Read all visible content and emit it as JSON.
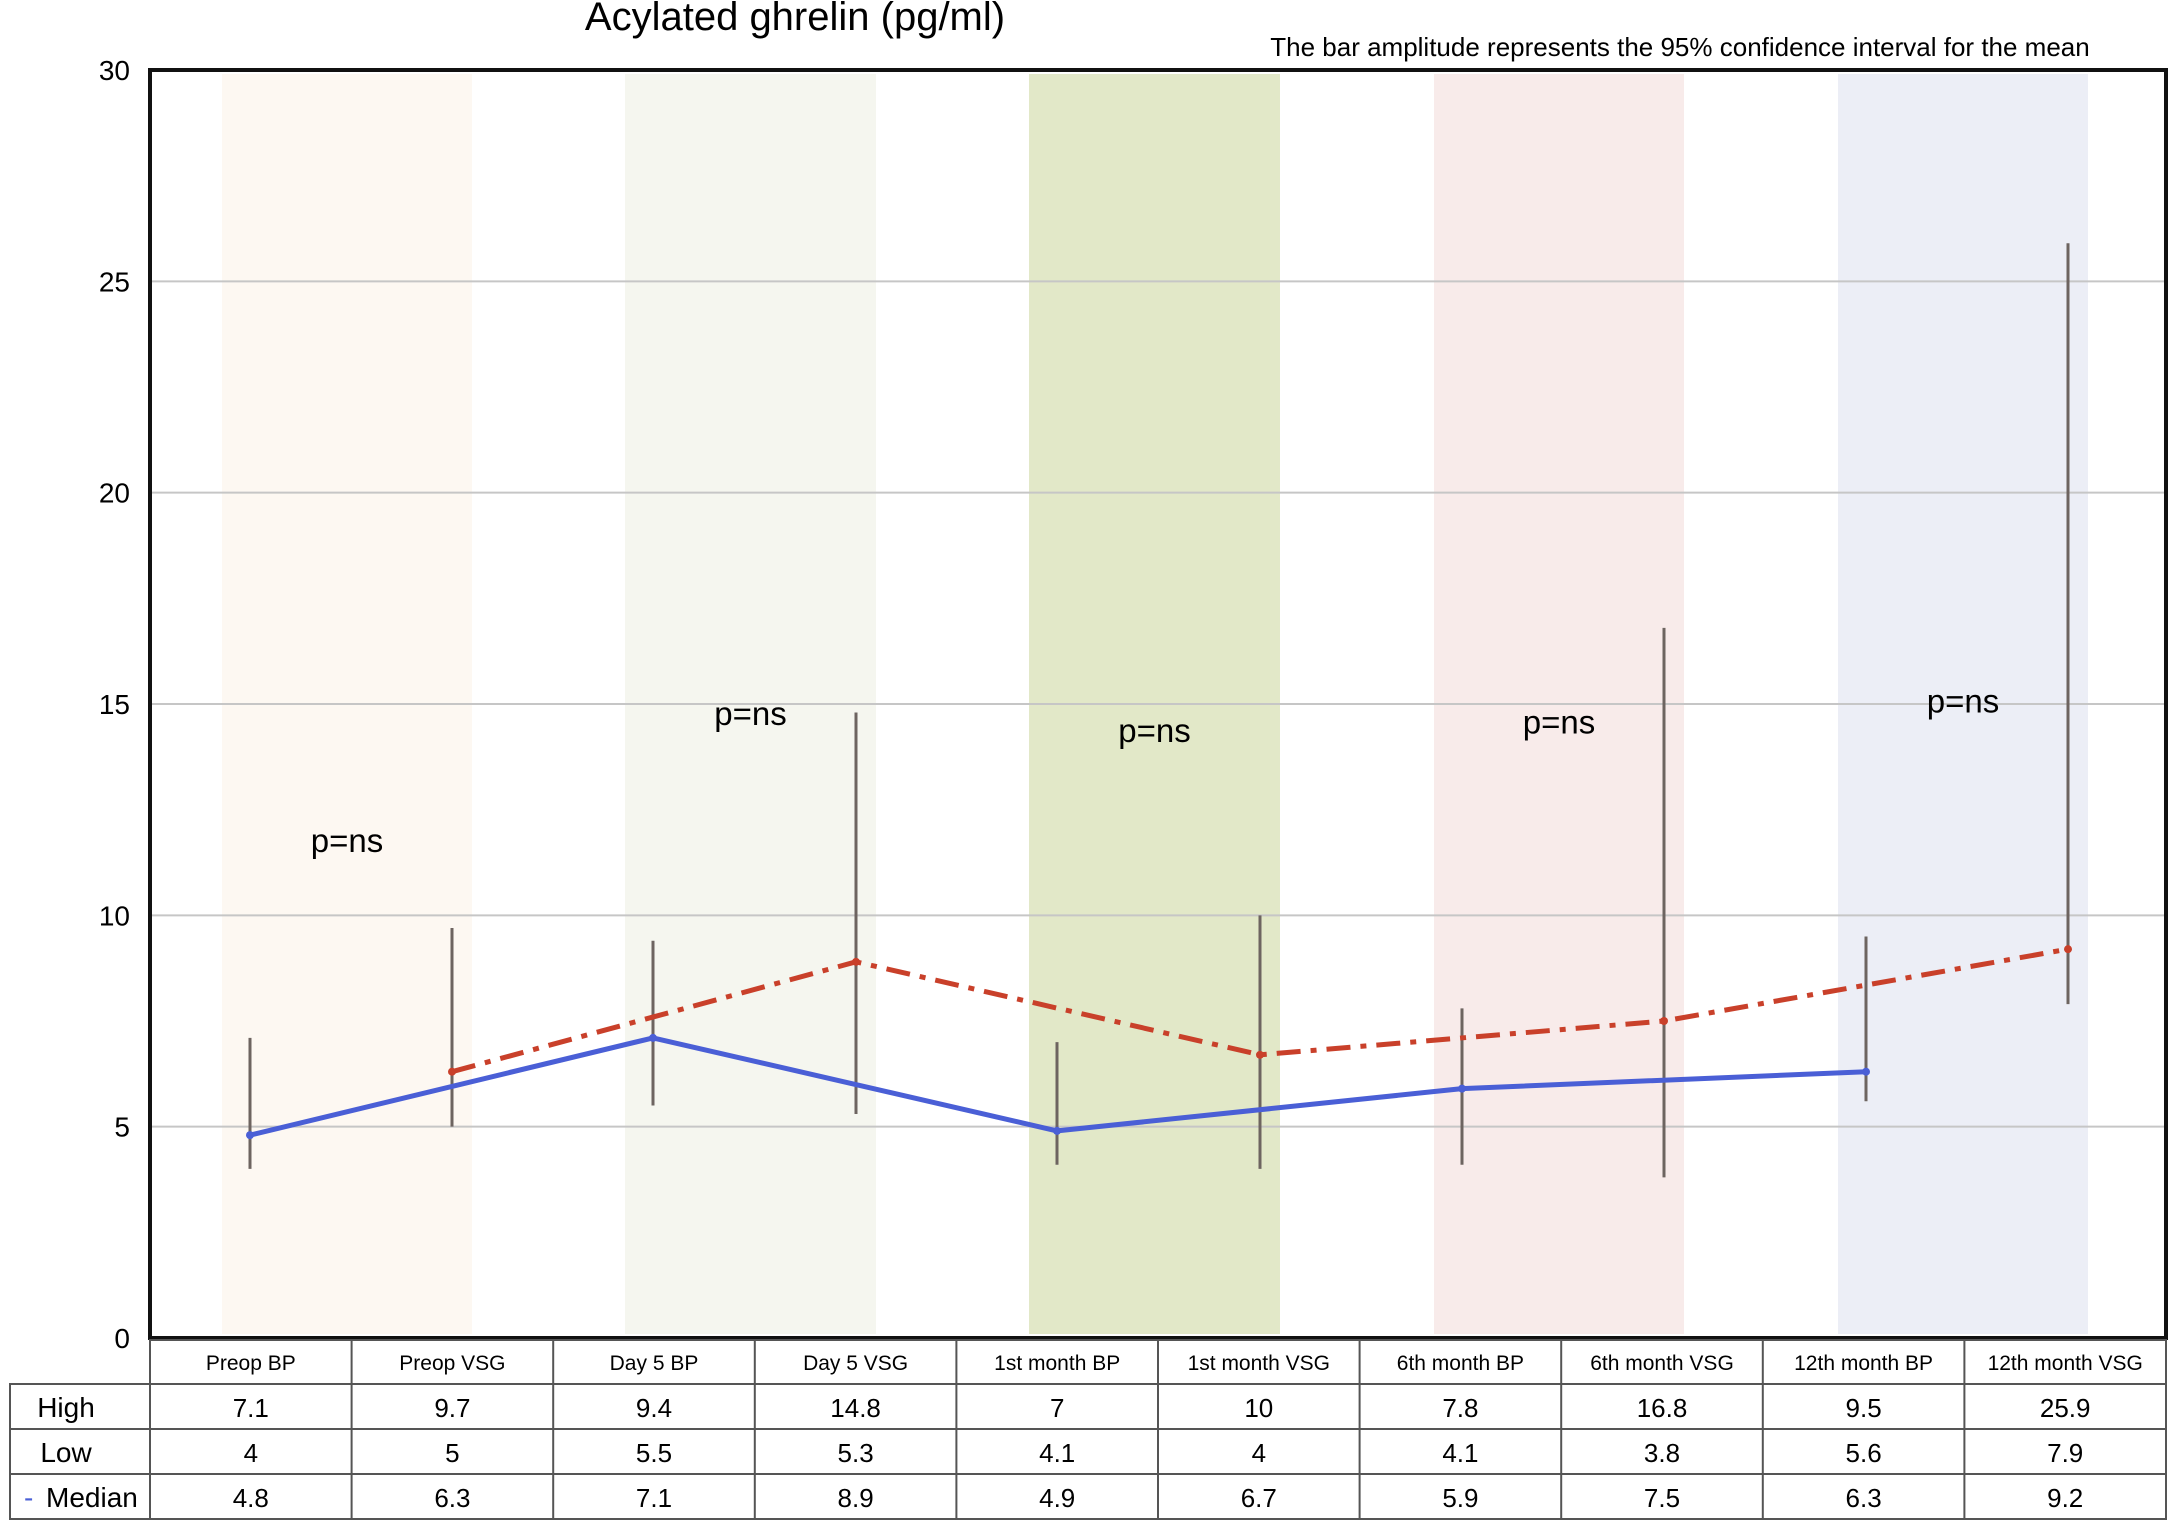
{
  "chart_data": {
    "type": "line",
    "title": "Acylated ghrelin (pg/ml)",
    "note": "The bar amplitude represents the 95% confidence interval for the mean",
    "ylim": [
      0,
      30
    ],
    "yticks": [
      "0",
      "5",
      "10",
      "15",
      "20",
      "25",
      "30"
    ],
    "grid": true,
    "categories": [
      "Preop BP",
      "Preop VSG",
      "Day 5 BP",
      "Day 5 VSG",
      "1st month BP",
      "1st month VSG",
      "6th month BP",
      "6th month VSG",
      "12th month BP",
      "12th month VSG"
    ],
    "table": {
      "row_labels": [
        "High",
        "Low",
        "Median"
      ],
      "rows": {
        "High": [
          "7.1",
          "9.7",
          "9.4",
          "14.8",
          "7",
          "10",
          "7.8",
          "16.8",
          "9.5",
          "25.9"
        ],
        "Low": [
          "4",
          "5",
          "5.5",
          "5.3",
          "4.1",
          "4",
          "4.1",
          "3.8",
          "5.6",
          "7.9"
        ],
        "Median": [
          "4.8",
          "6.3",
          "7.1",
          "8.9",
          "4.9",
          "6.7",
          "5.9",
          "7.5",
          "6.3",
          "9.2"
        ]
      },
      "median_marker": "-"
    },
    "high": [
      7.1,
      9.7,
      9.4,
      14.8,
      7,
      10,
      7.8,
      16.8,
      9.5,
      25.9
    ],
    "low": [
      4,
      5,
      5.5,
      5.3,
      4.1,
      4,
      4.1,
      3.8,
      5.6,
      7.9
    ],
    "median": [
      4.8,
      6.3,
      7.1,
      8.9,
      4.9,
      6.7,
      5.9,
      7.5,
      6.3,
      9.2
    ],
    "series": [
      {
        "group": "BP",
        "style": "solid",
        "color": "#4a5fd6",
        "indices": [
          0,
          2,
          4,
          6,
          8
        ]
      },
      {
        "group": "VSG",
        "style": "dash-dot",
        "color": "#c9402a",
        "indices": [
          1,
          3,
          5,
          7,
          9
        ]
      }
    ],
    "bands": [
      {
        "from": 0,
        "to": 1,
        "color": "#fdf8f2"
      },
      {
        "from": 2,
        "to": 3,
        "color": "#f5f6ef"
      },
      {
        "from": 4,
        "to": 5,
        "color": "#e2e8c8"
      },
      {
        "from": 6,
        "to": 7,
        "color": "#f8ebea"
      },
      {
        "from": 8,
        "to": 9,
        "color": "#eceef6"
      }
    ],
    "annotations": [
      {
        "text": "p=ns",
        "group": 0,
        "y": 11.5
      },
      {
        "text": "p=ns",
        "group": 1,
        "y": 14.5
      },
      {
        "text": "p=ns",
        "group": 2,
        "y": 14.1
      },
      {
        "text": "p=ns",
        "group": 3,
        "y": 14.3
      },
      {
        "text": "p=ns",
        "group": 4,
        "y": 14.8
      }
    ]
  }
}
